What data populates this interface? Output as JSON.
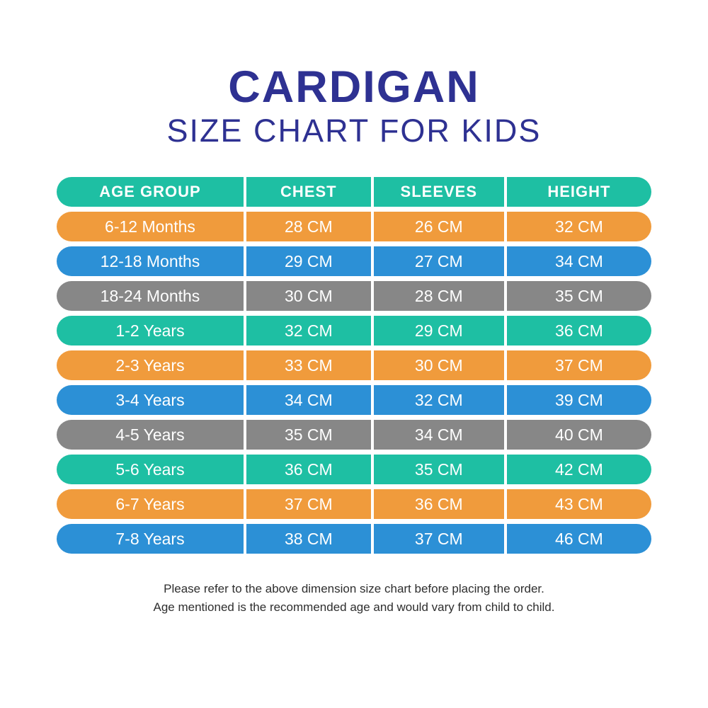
{
  "title": "CARDIGAN",
  "subtitle": "SIZE CHART FOR KIDS",
  "colors": {
    "title_text": "#2E3192",
    "header_row": "#1EBFA3",
    "teal": "#1EBFA3",
    "orange": "#F09B3C",
    "blue": "#2C90D6",
    "gray": "#878787",
    "row_text": "#FFFFFF"
  },
  "table": {
    "columns": [
      "AGE GROUP",
      "CHEST",
      "SLEEVES",
      "HEIGHT"
    ],
    "rows": [
      {
        "age": "6-12 Months",
        "chest": "28 CM",
        "sleeves": "26 CM",
        "height": "32 CM",
        "color": "orange"
      },
      {
        "age": "12-18 Months",
        "chest": "29 CM",
        "sleeves": "27 CM",
        "height": "34 CM",
        "color": "blue"
      },
      {
        "age": "18-24 Months",
        "chest": "30 CM",
        "sleeves": "28 CM",
        "height": "35 CM",
        "color": "gray"
      },
      {
        "age": "1-2 Years",
        "chest": "32 CM",
        "sleeves": "29 CM",
        "height": "36 CM",
        "color": "teal"
      },
      {
        "age": "2-3 Years",
        "chest": "33 CM",
        "sleeves": "30 CM",
        "height": "37 CM",
        "color": "orange"
      },
      {
        "age": "3-4 Years",
        "chest": "34 CM",
        "sleeves": "32 CM",
        "height": "39 CM",
        "color": "blue"
      },
      {
        "age": "4-5 Years",
        "chest": "35 CM",
        "sleeves": "34 CM",
        "height": "40 CM",
        "color": "gray"
      },
      {
        "age": "5-6 Years",
        "chest": "36 CM",
        "sleeves": "35 CM",
        "height": "42 CM",
        "color": "teal"
      },
      {
        "age": "6-7 Years",
        "chest": "37 CM",
        "sleeves": "36 CM",
        "height": "43 CM",
        "color": "orange"
      },
      {
        "age": "7-8 Years",
        "chest": "38 CM",
        "sleeves": "37 CM",
        "height": "46 CM",
        "color": "blue"
      }
    ]
  },
  "footer": {
    "line1": "Please refer to the above dimension size chart before placing the order.",
    "line2": "Age mentioned is the recommended age and would vary from child to child."
  },
  "chart_data": {
    "type": "table",
    "title": "CARDIGAN SIZE CHART FOR KIDS",
    "columns": [
      "AGE GROUP",
      "CHEST",
      "SLEEVES",
      "HEIGHT"
    ],
    "rows": [
      [
        "6-12 Months",
        "28 CM",
        "26 CM",
        "32 CM"
      ],
      [
        "12-18 Months",
        "29 CM",
        "27 CM",
        "34 CM"
      ],
      [
        "18-24 Months",
        "30 CM",
        "28 CM",
        "35 CM"
      ],
      [
        "1-2 Years",
        "32 CM",
        "29 CM",
        "36 CM"
      ],
      [
        "2-3 Years",
        "33 CM",
        "30 CM",
        "37 CM"
      ],
      [
        "3-4 Years",
        "34 CM",
        "32 CM",
        "39 CM"
      ],
      [
        "4-5 Years",
        "35 CM",
        "34 CM",
        "40 CM"
      ],
      [
        "5-6 Years",
        "36 CM",
        "35 CM",
        "42 CM"
      ],
      [
        "6-7 Years",
        "37 CM",
        "36 CM",
        "43 CM"
      ],
      [
        "7-8 Years",
        "38 CM",
        "37 CM",
        "46 CM"
      ]
    ],
    "row_color_cycle": [
      "orange",
      "blue",
      "gray",
      "teal"
    ],
    "units": "CM"
  }
}
